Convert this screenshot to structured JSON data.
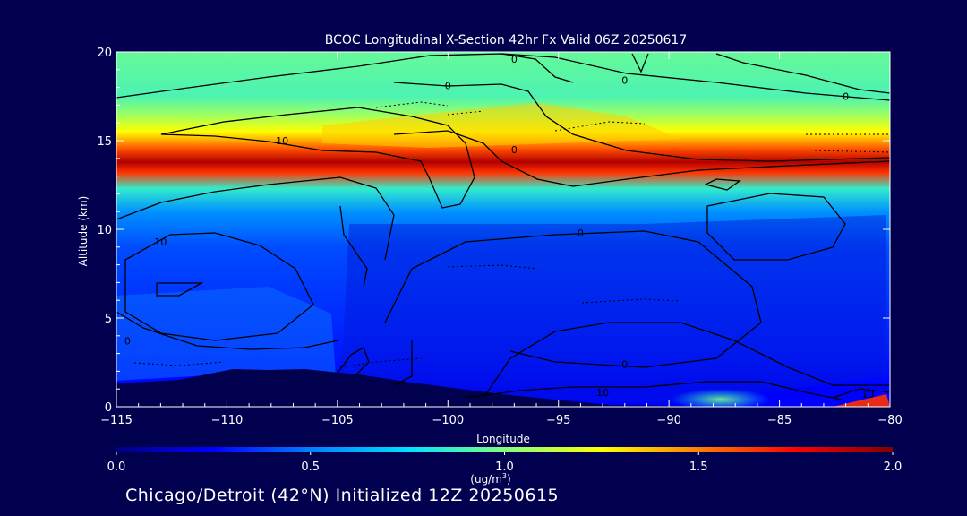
{
  "chart_data": {
    "type": "heatmap",
    "title": "BCOC Longitudinal X-Section 42hr  Fx Valid 06Z 20250617",
    "xlabel": "Longitude",
    "ylabel": "Altitude (km)",
    "xlim": [
      -115,
      -80
    ],
    "ylim": [
      0,
      20
    ],
    "x_ticks": [
      -115,
      -110,
      -105,
      -100,
      -95,
      -90,
      -85,
      -80
    ],
    "x_tick_labels": [
      "−115",
      "−110",
      "−105",
      "−100",
      "−95",
      "−90",
      "−85",
      "−80"
    ],
    "y_ticks": [
      0,
      5,
      10,
      15,
      20
    ],
    "y_tick_labels": [
      "0",
      "5",
      "10",
      "15",
      "20"
    ],
    "colorbar": {
      "min": 0.0,
      "max": 2.0,
      "ticks": [
        0.0,
        0.5,
        1.0,
        1.5,
        2.0
      ],
      "tick_labels": [
        "0.0",
        "0.5",
        "1.0",
        "1.5",
        "2.0"
      ],
      "units_main": "(ug/m",
      "units_sup": "3",
      "units_close": ")",
      "colors": [
        "#00007f",
        "#0000ff",
        "#007fff",
        "#00e0ff",
        "#7fff7f",
        "#ffff00",
        "#ff7f00",
        "#ff0000",
        "#7f0000"
      ]
    },
    "field_bands": [
      {
        "altitude_km": 20.0,
        "value": 0.95
      },
      {
        "altitude_km": 17.5,
        "value": 0.9
      },
      {
        "altitude_km": 16.5,
        "value": 1.05
      },
      {
        "altitude_km": 15.5,
        "value": 1.25
      },
      {
        "altitude_km": 14.5,
        "value": 1.6
      },
      {
        "altitude_km": 13.8,
        "value": 1.9
      },
      {
        "altitude_km": 13.2,
        "value": 1.65
      },
      {
        "altitude_km": 12.3,
        "value": 0.85
      },
      {
        "altitude_km": 11.0,
        "value": 0.55
      },
      {
        "altitude_km": 9.0,
        "value": 0.4
      },
      {
        "altitude_km": 6.0,
        "value": 0.35
      },
      {
        "altitude_km": 3.0,
        "value": 0.3
      },
      {
        "altitude_km": 1.0,
        "value": 0.25
      }
    ],
    "contour_labels": [
      {
        "text": "0",
        "lon": -97.0,
        "alt": 19.6
      },
      {
        "text": "0",
        "lon": -100.0,
        "alt": 18.1
      },
      {
        "text": "0",
        "lon": -92.0,
        "alt": 18.4
      },
      {
        "text": "0",
        "lon": -82.0,
        "alt": 17.5
      },
      {
        "text": "0",
        "lon": -97.0,
        "alt": 14.5
      },
      {
        "text": "10",
        "lon": -107.5,
        "alt": 15.0
      },
      {
        "text": "10",
        "lon": -113.0,
        "alt": 9.3
      },
      {
        "text": "0",
        "lon": -94.0,
        "alt": 9.8
      },
      {
        "text": "0",
        "lon": -114.5,
        "alt": 3.7
      },
      {
        "text": "0",
        "lon": -92.0,
        "alt": 2.4
      },
      {
        "text": "10",
        "lon": -93.0,
        "alt": 0.8
      },
      {
        "text": "10",
        "lon": -81.0,
        "alt": 0.7
      }
    ],
    "grid": false,
    "legend": "colorbar-bottom"
  },
  "footer_text": "Chicago/Detroit (42°N) Initialized 12Z 20250615"
}
